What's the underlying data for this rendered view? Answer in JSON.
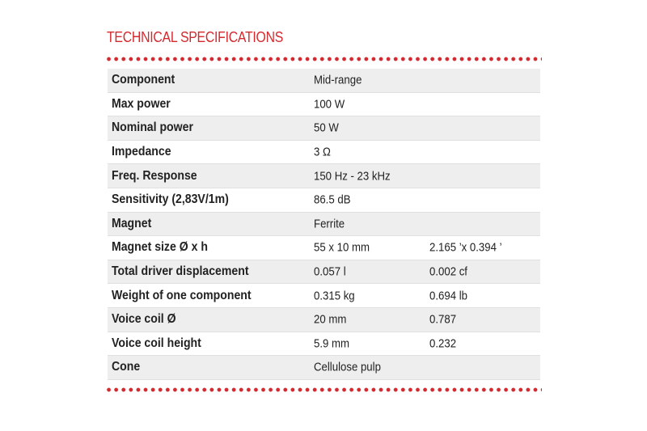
{
  "header": {
    "title": "TECHNICAL SPECIFICATIONS"
  },
  "table": {
    "rows": [
      [
        "Component",
        "Mid-range"
      ],
      [
        "Max power",
        "100 W"
      ],
      [
        "Nominal power",
        "50 W"
      ],
      [
        "Impedance",
        "3 Ω"
      ],
      [
        "Freq. Response",
        "150 Hz - 23 kHz"
      ],
      [
        "Sensitivity (2,83V/1m)",
        "86.5 dB"
      ],
      [
        "Magnet",
        "Ferrite"
      ],
      [
        "Magnet size Ø x h",
        "55 x 10 mm",
        "2.165 ’x 0.394 ’"
      ],
      [
        "Total driver displacement",
        "0.057 l",
        "0.002 cf"
      ],
      [
        "Weight of one component",
        "0.315 kg",
        "0.694 lb"
      ],
      [
        "Voice coil Ø",
        "20 mm",
        "0.787"
      ],
      [
        "Voice coil height",
        "5.9 mm",
        "0.232"
      ],
      [
        "Cone",
        "Cellulose pulp"
      ]
    ]
  }
}
